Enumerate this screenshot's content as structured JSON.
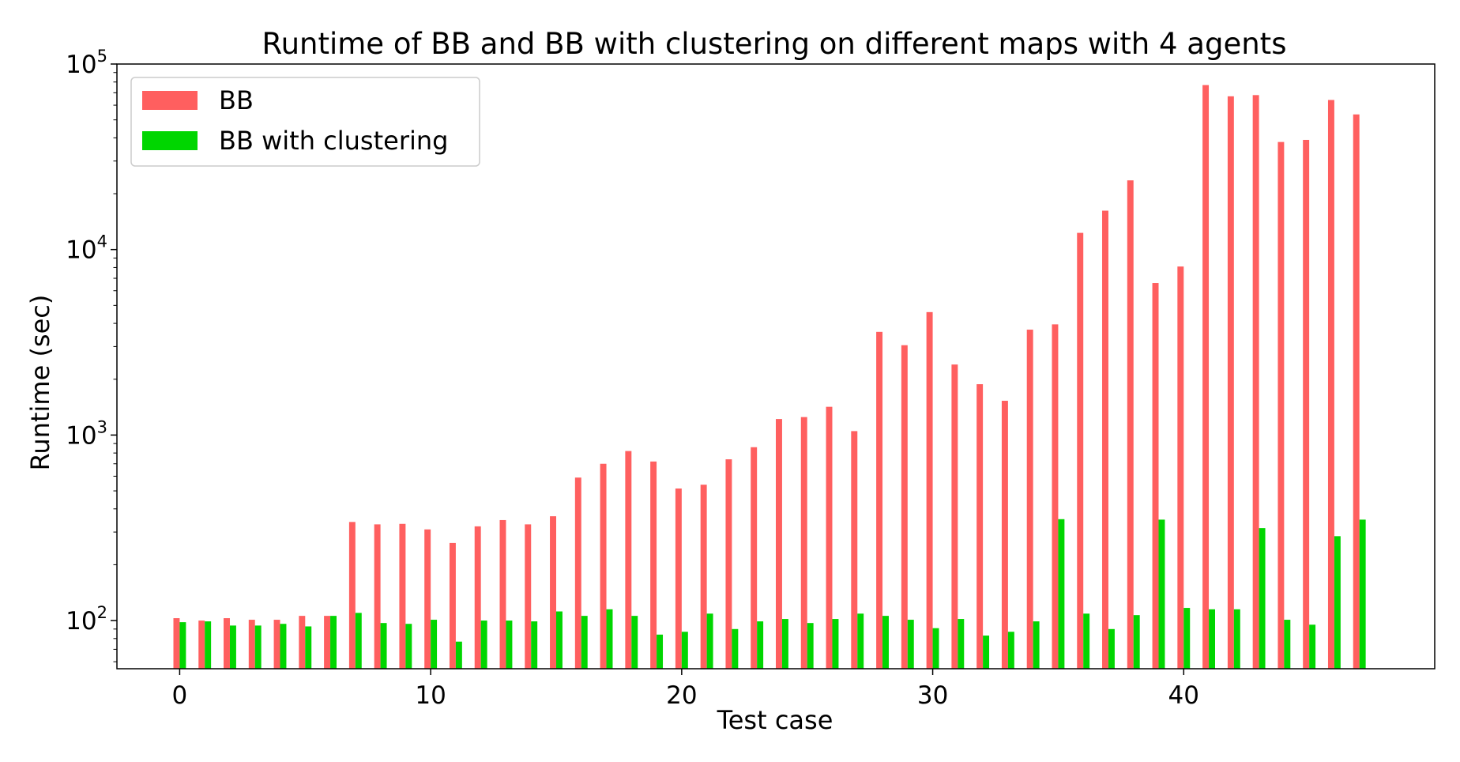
{
  "chart_data": {
    "type": "bar",
    "title": "Runtime of BB and BB with clustering on different maps with 4 agents",
    "xlabel": "Test case",
    "ylabel": "Runtime (sec)",
    "yscale": "log",
    "ylim": [
      55,
      100000
    ],
    "xlim": [
      -2.5,
      50
    ],
    "x_ticks": [
      0,
      10,
      20,
      30,
      40
    ],
    "y_ticks": [
      {
        "value": 100,
        "base": "10",
        "exp": "2"
      },
      {
        "value": 1000,
        "base": "10",
        "exp": "3"
      },
      {
        "value": 10000,
        "base": "10",
        "exp": "4"
      },
      {
        "value": 100000,
        "base": "10",
        "exp": "5"
      }
    ],
    "legend": "upper-left",
    "grid": false,
    "x": [
      0,
      1,
      2,
      3,
      4,
      5,
      6,
      7,
      8,
      9,
      10,
      11,
      12,
      13,
      14,
      15,
      16,
      17,
      18,
      19,
      20,
      21,
      22,
      23,
      24,
      25,
      26,
      27,
      28,
      29,
      30,
      31,
      32,
      33,
      34,
      35,
      36,
      37,
      38,
      39,
      40,
      41,
      42,
      43,
      44,
      45,
      46,
      47
    ],
    "series": [
      {
        "name": "BB",
        "color": "#ff5f5f",
        "values": [
          103,
          100,
          103,
          101,
          101,
          106,
          106,
          340,
          330,
          332,
          310,
          262,
          322,
          348,
          330,
          365,
          590,
          700,
          820,
          720,
          515,
          540,
          740,
          860,
          1220,
          1250,
          1420,
          1050,
          3600,
          3050,
          4600,
          2400,
          1880,
          1530,
          3700,
          3950,
          12300,
          16200,
          23600,
          6600,
          8100,
          77000,
          67000,
          68000,
          38000,
          39000,
          64000,
          53500
        ]
      },
      {
        "name": "BB with clustering",
        "color": "#00d600",
        "values": [
          98,
          99,
          94,
          94,
          96,
          93,
          106,
          110,
          97,
          96,
          101,
          77,
          100,
          100,
          99,
          112,
          106,
          115,
          106,
          84,
          87,
          109,
          90,
          99,
          102,
          97,
          102,
          109,
          106,
          101,
          91,
          102,
          83,
          87,
          99,
          352,
          109,
          90,
          107,
          350,
          117,
          115,
          115,
          315,
          101,
          95,
          285,
          350
        ]
      }
    ]
  }
}
